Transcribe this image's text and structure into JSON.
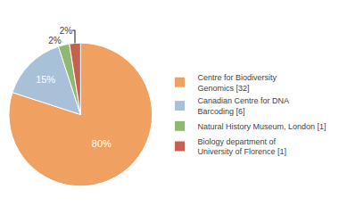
{
  "chart_data": {
    "type": "pie",
    "categories": [
      "Centre for Biodiversity\nGenomics [32]",
      "Canadian Centre for DNA\nBarcoding [6]",
      "Natural History Museum, London [1]",
      "Biology department of\nUniversity of Florence [1]"
    ],
    "values": [
      80,
      15,
      2.5,
      2.5
    ],
    "value_labels": [
      "80%",
      "15%",
      "2%",
      "2%"
    ],
    "colors": [
      "#F0A060",
      "#A8C0D8",
      "#90B870",
      "#C86050"
    ],
    "data_labels": true,
    "text_color": "white",
    "legend": "right"
  }
}
